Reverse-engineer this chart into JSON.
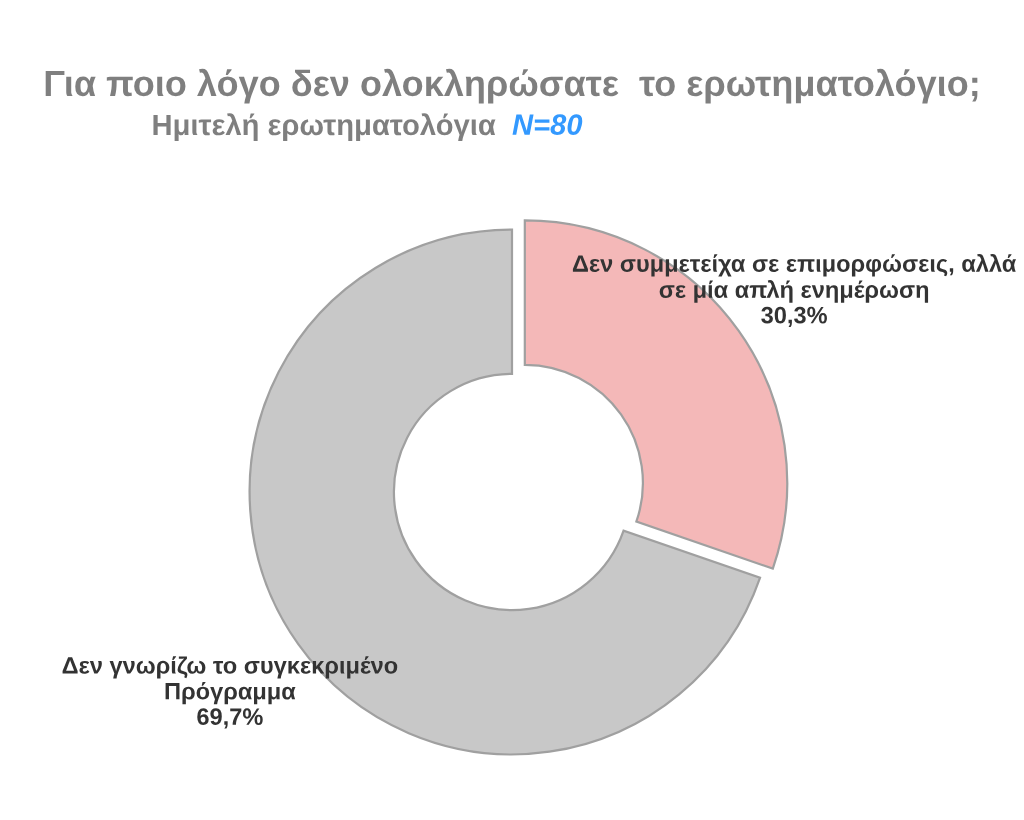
{
  "chart_data": {
    "type": "donut",
    "title": "Για ποιο λόγο δεν ολοκληρώσατε  το ερωτηματολόγιο;",
    "subtitle": "Ημιτελή ερωτηματολόγια",
    "annotations": [
      "N=80"
    ],
    "categories": [
      "Δεν συμμετείχα σε επιμορφώσεις, αλλά σε μία απλή ενημέρωση",
      "Δεν γνωρίζω το συγκεκριμένο Πρόγραμμα"
    ],
    "values": [
      30.3,
      69.7
    ],
    "value_labels": [
      "30,3%",
      "69,7%"
    ],
    "colors": [
      "#f4b8b8",
      "#c8c8c8"
    ],
    "legend": false
  }
}
